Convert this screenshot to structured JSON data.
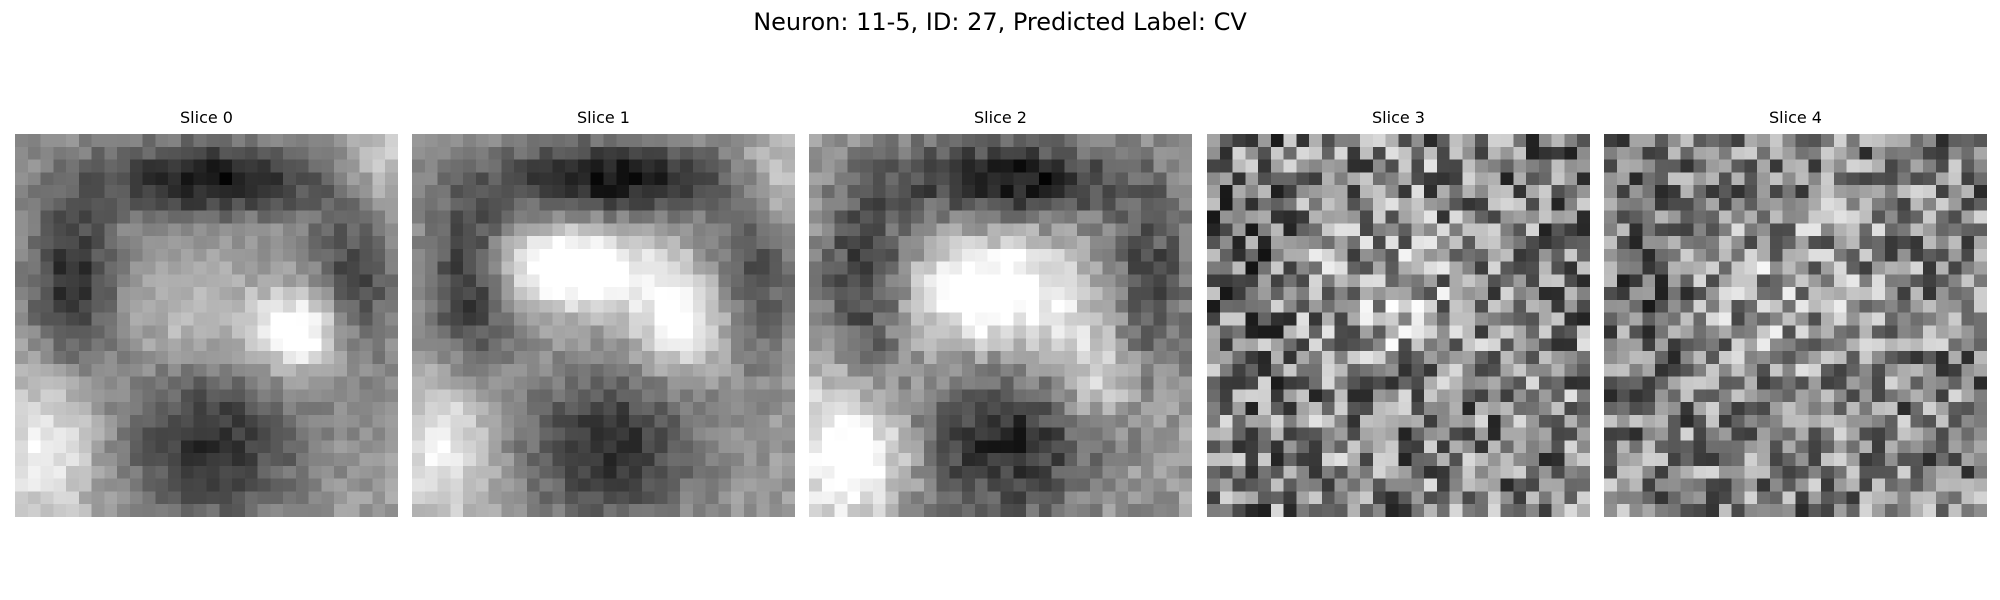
{
  "figure": {
    "title": "Neuron: 11-5, ID: 27, Predicted Label: CV"
  },
  "colormap": "gray",
  "slices": [
    {
      "title": "Slice 0",
      "appearance": "smooth-blurred"
    },
    {
      "title": "Slice 1",
      "appearance": "smooth-blurred"
    },
    {
      "title": "Slice 2",
      "appearance": "moderate-noise"
    },
    {
      "title": "Slice 3",
      "appearance": "high-noise"
    },
    {
      "title": "Slice 4",
      "appearance": "high-noise"
    }
  ]
}
